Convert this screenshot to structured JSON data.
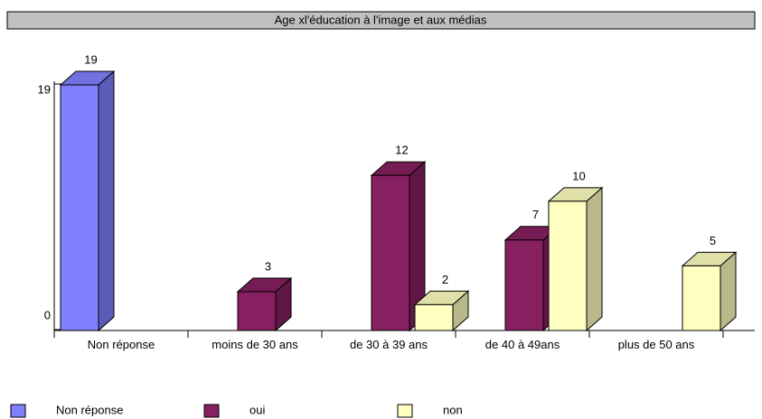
{
  "chart_data": {
    "type": "bar3d",
    "title": "Age xl'éducation à l'image et aux médias",
    "categories": [
      "Non réponse",
      "moins de 30 ans",
      "de 30 à 39 ans",
      "de 40 à 49ans",
      "plus de 50 ans"
    ],
    "series": [
      {
        "name": "Non réponse",
        "color": "#8080ff",
        "values": [
          19,
          null,
          null,
          null,
          null
        ]
      },
      {
        "name": "oui",
        "color": "#862060",
        "values": [
          null,
          3,
          12,
          7,
          null
        ]
      },
      {
        "name": "non",
        "color": "#ffffc0",
        "values": [
          null,
          null,
          2,
          10,
          5
        ]
      }
    ],
    "ylim": [
      0,
      19
    ],
    "yticks": [
      0,
      19
    ],
    "grid": false,
    "legend": "bottom"
  }
}
